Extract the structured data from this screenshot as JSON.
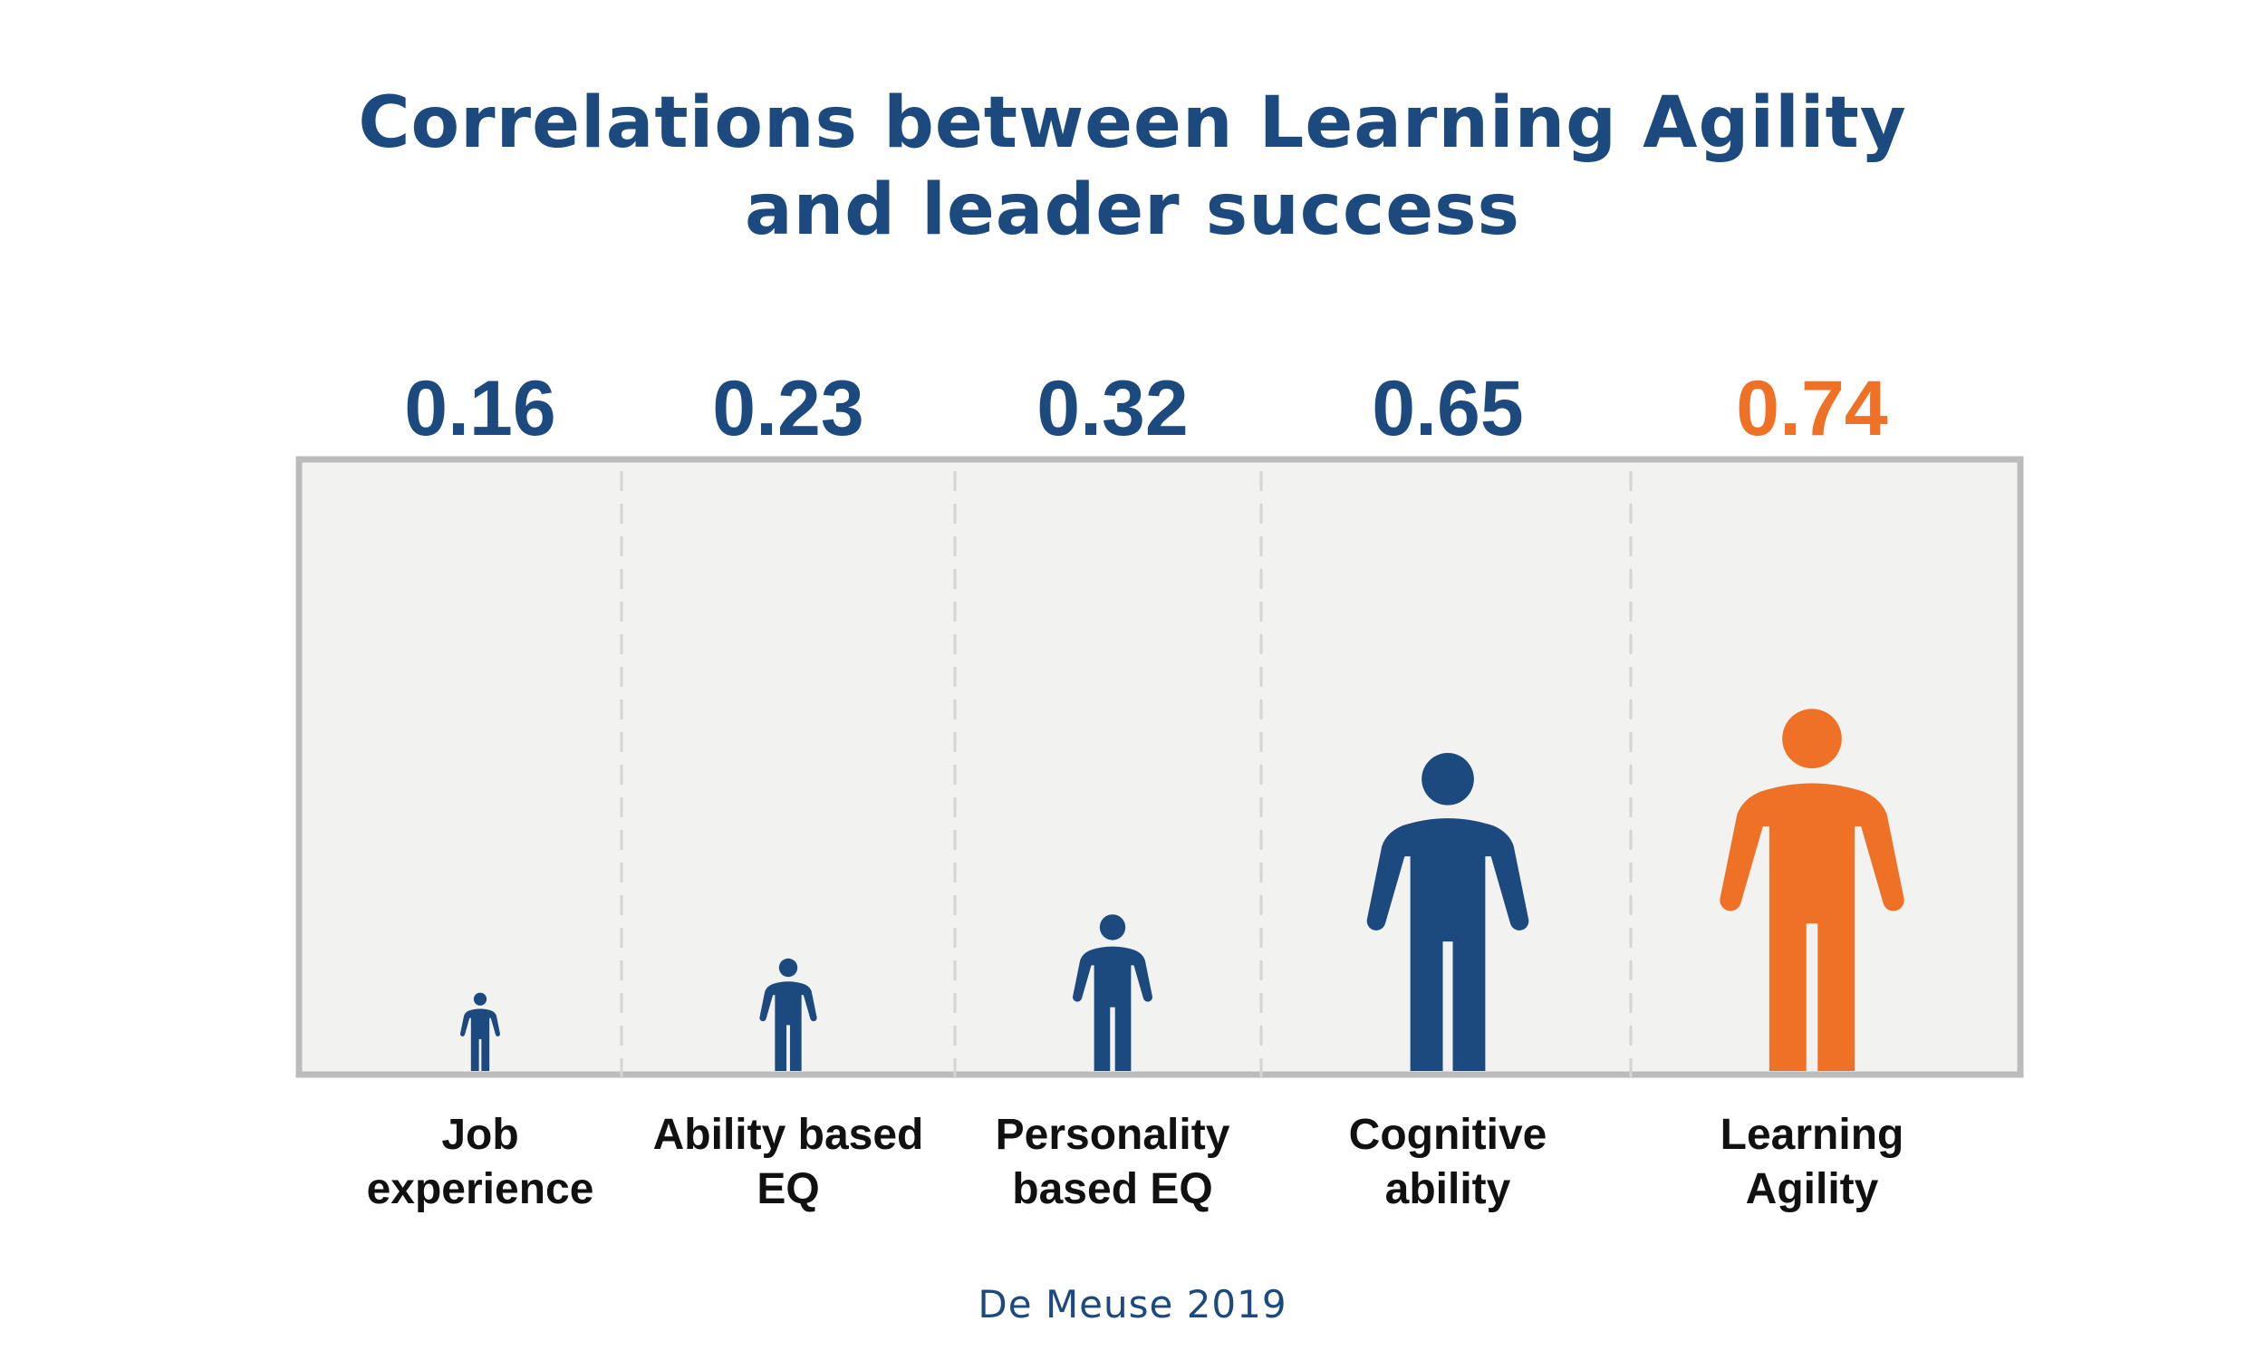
{
  "title_lines": [
    "Correlations between Learning Agility",
    "and leader success"
  ],
  "source": "De Meuse 2019",
  "colors": {
    "primary": "#1c4a7f",
    "highlight": "#ee7125",
    "panel": "#f2f2f1",
    "border": "#bcbcbc",
    "divider": "#d4d4d4",
    "label": "#111111"
  },
  "chart_data": {
    "type": "bar",
    "title": "Correlations between Learning Agility and leader success",
    "categories": [
      [
        "Job",
        "experience"
      ],
      [
        "Ability based",
        "EQ"
      ],
      [
        "Personality",
        "based EQ"
      ],
      [
        "Cognitive",
        "ability"
      ],
      [
        "Learning",
        "Agility"
      ]
    ],
    "values": [
      0.16,
      0.23,
      0.32,
      0.65,
      0.74
    ],
    "value_labels": [
      "0.16",
      "0.23",
      "0.32",
      "0.65",
      "0.74"
    ],
    "highlight_index": 4,
    "marker": "person-icon",
    "ylim": [
      0,
      1
    ],
    "grid": false
  }
}
